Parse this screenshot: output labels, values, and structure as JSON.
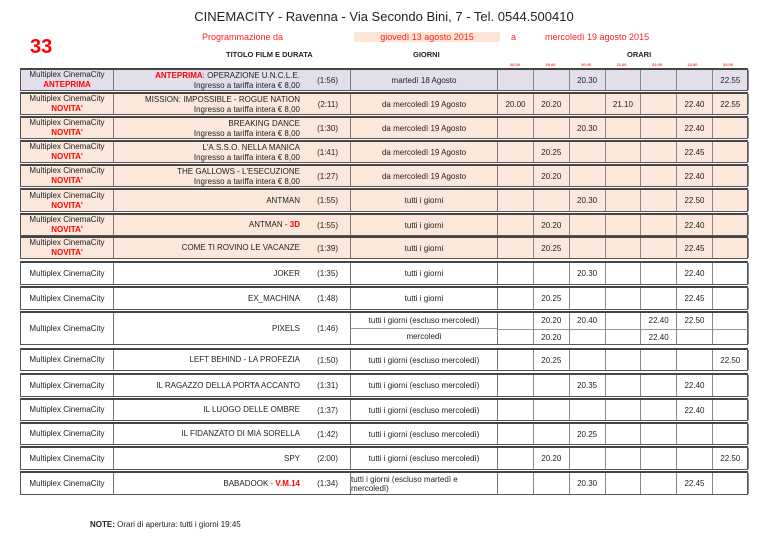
{
  "header": {
    "title": "CINEMACITY - Ravenna - Via Secondo Bini, 7 - Tel. 0544.500410",
    "number": "33",
    "programmazione_label": "Programmazione da",
    "date_from": "giovedì 13 agosto 2015",
    "a_label": "a",
    "date_to": "mercoledì 19 agosto 2015",
    "col_title": "TITOLO FILM E DURATA",
    "col_days": "GIORNI",
    "col_times": "ORARI",
    "time_columns": [
      "20.00",
      "20.00",
      "20.00",
      "21.00",
      "22.00",
      "22.00",
      "22.00"
    ]
  },
  "colors": {
    "accent": "#ff0000",
    "novita_bg": "#fbe8da",
    "anteprima_bg": "#e2dfeb",
    "date_bg": "#fbe5d6"
  },
  "rows": [
    {
      "cinema": "Multiplex CinemaCity",
      "badge": "ANTEPRIMA",
      "style": "lav",
      "title_tag": "ANTEPRIMA",
      "title": ": OPERAZIONE U.N.C.L.E.",
      "subtitle": "Ingresso a tariffa intera € 8,00",
      "duration": "(1:56)",
      "days": [
        {
          "label": "martedì 18 Agosto",
          "times": [
            "",
            "",
            "20.30",
            "",
            "",
            "",
            "22.55"
          ]
        }
      ]
    },
    {
      "cinema": "Multiplex CinemaCity",
      "badge": "NOVITA'",
      "style": "peach",
      "title": "MISSION: IMPOSSIBLE  - ROGUE NATION",
      "subtitle": "Ingresso a tariffa intera € 8,00",
      "duration": "(2:11)",
      "days": [
        {
          "label": "da mercoledì 19 Agosto",
          "times": [
            "20.00",
            "20.20",
            "",
            "21.10",
            "",
            "22.40",
            "22.55"
          ]
        }
      ]
    },
    {
      "cinema": "Multiplex CinemaCity",
      "badge": "NOVITA'",
      "style": "peach",
      "title": "BREAKING DANCE",
      "subtitle": "Ingresso a tariffa intera € 8,00",
      "duration": "(1:30)",
      "days": [
        {
          "label": "da mercoledì 19 Agosto",
          "times": [
            "",
            "",
            "20.30",
            "",
            "",
            "22.40",
            ""
          ]
        }
      ]
    },
    {
      "cinema": "Multiplex CinemaCity",
      "badge": "NOVITA'",
      "style": "peach",
      "title": "L'A.S.S.O. NELLA MANICA",
      "subtitle": "Ingresso a tariffa intera € 8,00",
      "duration": "(1:41)",
      "days": [
        {
          "label": "da mercoledì 19 Agosto",
          "times": [
            "",
            "20.25",
            "",
            "",
            "",
            "22.45",
            ""
          ]
        }
      ]
    },
    {
      "cinema": "Multiplex CinemaCity",
      "badge": "NOVITA'",
      "style": "peach",
      "title": "THE GALLOWS - L'ESECUZIONE",
      "subtitle": "Ingresso a tariffa intera € 8,00",
      "duration": "(1:27)",
      "days": [
        {
          "label": "da mercoledì 19 Agosto",
          "times": [
            "",
            "20.20",
            "",
            "",
            "",
            "22.40",
            ""
          ]
        }
      ]
    },
    {
      "cinema": "Multiplex CinemaCity",
      "badge": "NOVITA'",
      "style": "peach",
      "title": "ANTMAN",
      "duration": "(1:55)",
      "days": [
        {
          "label": "tutti i giorni",
          "times": [
            "",
            "",
            "20.30",
            "",
            "",
            "22.50",
            ""
          ]
        }
      ]
    },
    {
      "cinema": "Multiplex CinemaCity",
      "badge": "NOVITA'",
      "style": "peach",
      "title": "ANTMAN - ",
      "title_suffix": "3D",
      "duration": "(1:55)",
      "days": [
        {
          "label": "tutti i giorni",
          "times": [
            "",
            "20.20",
            "",
            "",
            "",
            "22.40",
            ""
          ]
        }
      ]
    },
    {
      "cinema": "Multiplex CinemaCity",
      "badge": "NOVITA'",
      "style": "peach",
      "title": "COME TI ROVINO LE VACANZE",
      "duration": "(1:39)",
      "days": [
        {
          "label": "tutti i giorni",
          "times": [
            "",
            "20.25",
            "",
            "",
            "",
            "22.45",
            ""
          ]
        }
      ]
    },
    {
      "cinema": "Multiplex CinemaCity",
      "title": "JOKER",
      "duration": "(1:35)",
      "days": [
        {
          "label": "tutti i giorni",
          "times": [
            "",
            "",
            "20.30",
            "",
            "",
            "22.40",
            ""
          ]
        }
      ]
    },
    {
      "cinema": "Multiplex CinemaCity",
      "title": "EX_MACHINA",
      "duration": "(1:48)",
      "days": [
        {
          "label": "tutti i giorni",
          "times": [
            "",
            "20.25",
            "",
            "",
            "",
            "22.45",
            ""
          ]
        }
      ]
    },
    {
      "cinema": "Multiplex CinemaCity",
      "title": "PIXELS",
      "duration": "(1:46)",
      "days": [
        {
          "label": "tutti i giorni (escluso mercoledì)",
          "times": [
            "",
            "20.20",
            "20.40",
            "",
            "22.40",
            "22.50",
            ""
          ]
        },
        {
          "label": "mercoledì",
          "times": [
            "",
            "20.20",
            "",
            "",
            "22.40",
            "",
            ""
          ]
        }
      ]
    },
    {
      "cinema": "Multiplex CinemaCity",
      "title": "LEFT BEHIND - LA PROFEZIA",
      "duration": "(1:50)",
      "days": [
        {
          "label": "tutti i giorni (escluso mercoledì)",
          "times": [
            "",
            "20.25",
            "",
            "",
            "",
            "",
            "22.50"
          ]
        }
      ]
    },
    {
      "cinema": "Multiplex CinemaCity",
      "title": "IL RAGAZZO DELLA PORTA ACCANTO",
      "duration": "(1:31)",
      "days": [
        {
          "label": "tutti i giorni (escluso mercoledì)",
          "times": [
            "",
            "",
            "20.35",
            "",
            "",
            "22.40",
            ""
          ]
        }
      ]
    },
    {
      "cinema": "Multiplex CinemaCity",
      "title": "IL LUOGO DELLE OMBRE",
      "duration": "(1:37)",
      "days": [
        {
          "label": "tutti i giorni (escluso mercoledì)",
          "times": [
            "",
            "",
            "",
            "",
            "",
            "22.40",
            ""
          ]
        }
      ]
    },
    {
      "cinema": "Multiplex CinemaCity",
      "title": "IL FIDANZATO DI MIA SORELLA",
      "duration": "(1:42)",
      "days": [
        {
          "label": "tutti i giorni (escluso mercoledì)",
          "times": [
            "",
            "",
            "20.25",
            "",
            "",
            "",
            ""
          ]
        }
      ]
    },
    {
      "cinema": "Multiplex CinemaCity",
      "title": "SPY",
      "duration": "(2:00)",
      "days": [
        {
          "label": "tutti i giorni (escluso mercoledì)",
          "times": [
            "",
            "20.20",
            "",
            "",
            "",
            "",
            "22.50"
          ]
        }
      ]
    },
    {
      "cinema": "Multiplex CinemaCity",
      "title": "BABADOOK - ",
      "title_suffix": "V.M.14",
      "duration": "(1:34)",
      "days": [
        {
          "label": "tutti i giorni (escluso martedì e mercoledì)",
          "times": [
            "",
            "",
            "20.30",
            "",
            "",
            "22.45",
            ""
          ]
        }
      ]
    }
  ],
  "note": {
    "label": "NOTE:",
    "text": "Orari di apertura: tutti i giorni 19:45"
  }
}
